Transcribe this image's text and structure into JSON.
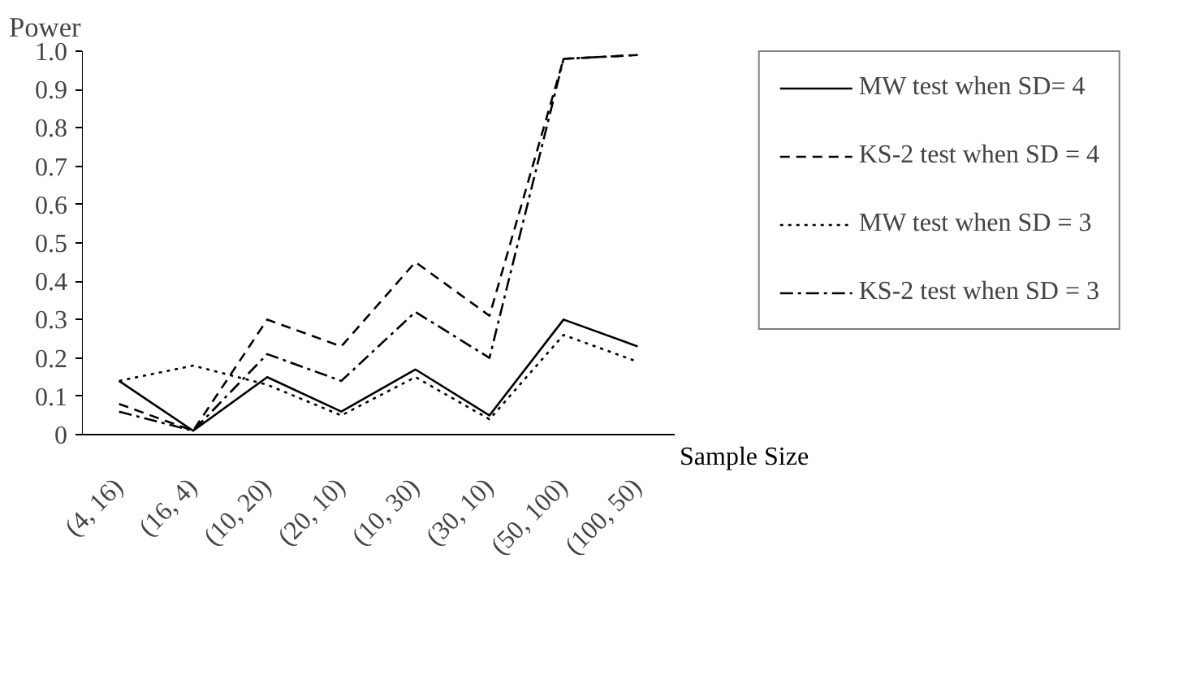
{
  "chart_data": {
    "type": "line",
    "ylabel": "Power",
    "xlabel": "Sample Size",
    "categories": [
      "(4, 16)",
      "(16, 4)",
      "(10, 20)",
      "(20, 10)",
      "(10, 30)",
      "(30, 10)",
      "(50, 100)",
      "(100, 50)"
    ],
    "series": [
      {
        "name": "MW test when SD= 4",
        "color": "#000000",
        "line_style": "solid",
        "values": [
          0.14,
          0.01,
          0.15,
          0.06,
          0.17,
          0.05,
          0.3,
          0.23
        ]
      },
      {
        "name": "KS-2 test when SD = 4",
        "color": "#000000",
        "line_style": "dashed",
        "values": [
          0.08,
          0.01,
          0.3,
          0.23,
          0.45,
          0.31,
          0.98,
          0.99
        ]
      },
      {
        "name": "MW test when SD = 3",
        "color": "#000000",
        "line_style": "dotted",
        "values": [
          0.14,
          0.18,
          0.13,
          0.05,
          0.15,
          0.04,
          0.26,
          0.19
        ]
      },
      {
        "name": "KS-2 test when SD = 3",
        "color": "#000000",
        "line_style": "dashdot",
        "values": [
          0.06,
          0.01,
          0.21,
          0.14,
          0.32,
          0.2,
          0.98,
          0.99
        ]
      }
    ],
    "ylim": [
      0,
      1.0
    ],
    "yticks": [
      {
        "value": 0,
        "label": "0"
      },
      0.1,
      0.2,
      0.3,
      0.4,
      0.5,
      0.6,
      0.7,
      0.8,
      0.9,
      {
        "value": 1.0,
        "label": "1.0"
      }
    ],
    "grid": false,
    "legend": "right",
    "marker": "none"
  }
}
